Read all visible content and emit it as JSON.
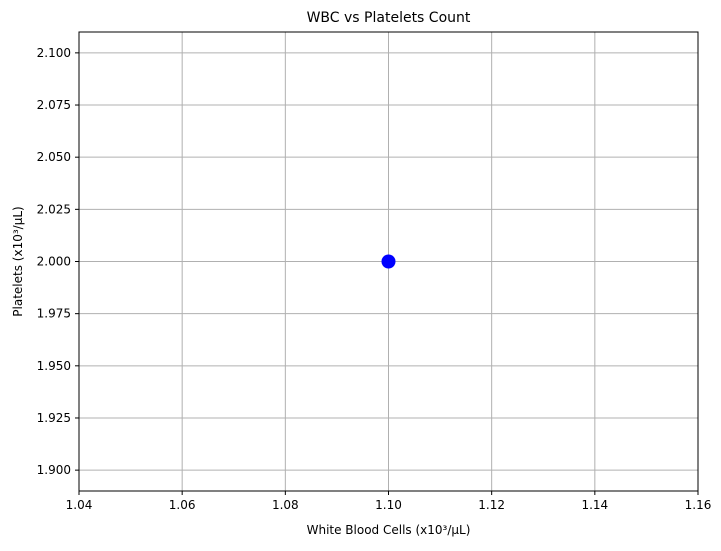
{
  "chart_data": {
    "type": "scatter",
    "title": "WBC vs Platelets Count",
    "xlabel": "White Blood Cells (x10³/µL)",
    "ylabel": "Platelets (x10³/µL)",
    "xlim": [
      1.04,
      1.16
    ],
    "ylim": [
      1.89,
      2.11
    ],
    "xticks": [
      1.04,
      1.06,
      1.08,
      1.1,
      1.12,
      1.14,
      1.16
    ],
    "xtick_labels": [
      "1.04",
      "1.06",
      "1.08",
      "1.10",
      "1.12",
      "1.14",
      "1.16"
    ],
    "yticks": [
      1.9,
      1.925,
      1.95,
      1.975,
      2.0,
      2.025,
      2.05,
      2.075,
      2.1
    ],
    "ytick_labels": [
      "1.900",
      "1.925",
      "1.950",
      "1.975",
      "2.000",
      "2.025",
      "2.050",
      "2.075",
      "2.100"
    ],
    "grid": true,
    "series": [
      {
        "color": "#0000ff",
        "points": [
          {
            "x": 1.1,
            "y": 2.0
          }
        ]
      }
    ]
  }
}
